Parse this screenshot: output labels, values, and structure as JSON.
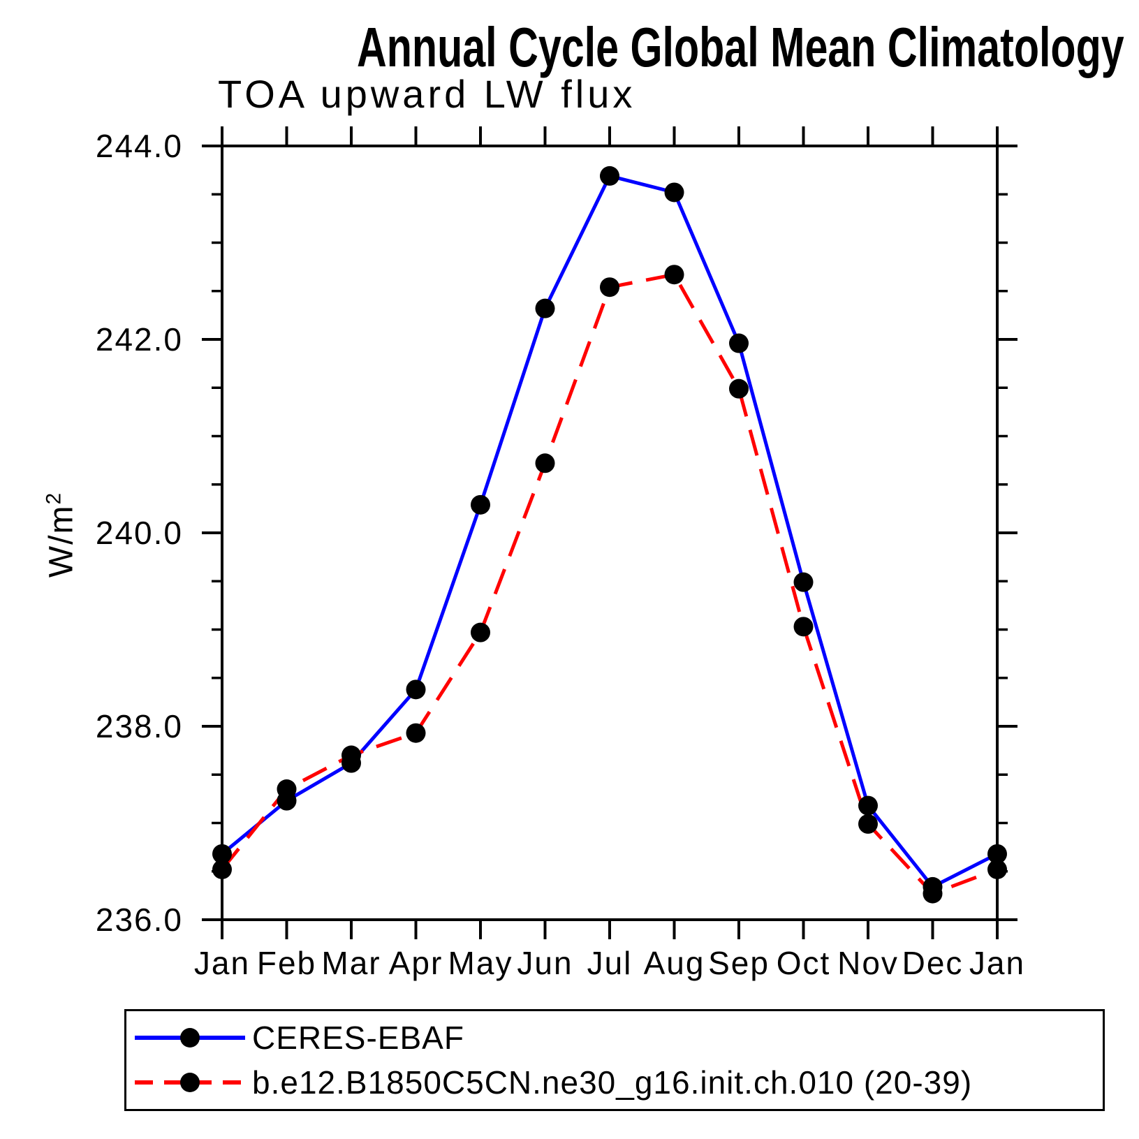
{
  "page": {
    "title": "Annual Cycle Global Mean Climatology"
  },
  "chart_data": {
    "type": "line",
    "title": "Annual Cycle Global Mean Climatology",
    "subtitle": "TOA upward LW flux",
    "ylabel": "W/m²",
    "ylabel_base": "W/m",
    "ylabel_sup": "2",
    "categories": [
      "Jan",
      "Feb",
      "Mar",
      "Apr",
      "May",
      "Jun",
      "Jul",
      "Aug",
      "Sep",
      "Oct",
      "Nov",
      "Dec",
      "Jan"
    ],
    "ylim": [
      236.0,
      244.0
    ],
    "y_tick_labels": [
      "244.0",
      "242.0",
      "240.0",
      "238.0",
      "236.0"
    ],
    "y_tick_values": [
      244.0,
      242.0,
      240.0,
      238.0,
      236.0
    ],
    "y_minor_step": 0.5,
    "grid": "off",
    "legend_position": "bottom-left-box",
    "marker": {
      "shape": "circle",
      "color": "#000000",
      "radius_px": 14
    },
    "series": [
      {
        "name": "CERES-EBAF",
        "color": "#0000ff",
        "line_style": "solid",
        "values": [
          236.68,
          237.23,
          237.62,
          238.38,
          240.29,
          242.32,
          243.69,
          243.52,
          241.96,
          239.49,
          237.18,
          236.34,
          236.68
        ]
      },
      {
        "name": "b.e12.B1850C5CN.ne30_g16.init.ch.010 (20-39)",
        "color": "#ff0000",
        "line_style": "dashed",
        "values": [
          236.52,
          237.35,
          237.7,
          237.93,
          238.97,
          240.72,
          242.54,
          242.67,
          241.49,
          239.03,
          236.99,
          236.27,
          236.52
        ]
      }
    ]
  }
}
